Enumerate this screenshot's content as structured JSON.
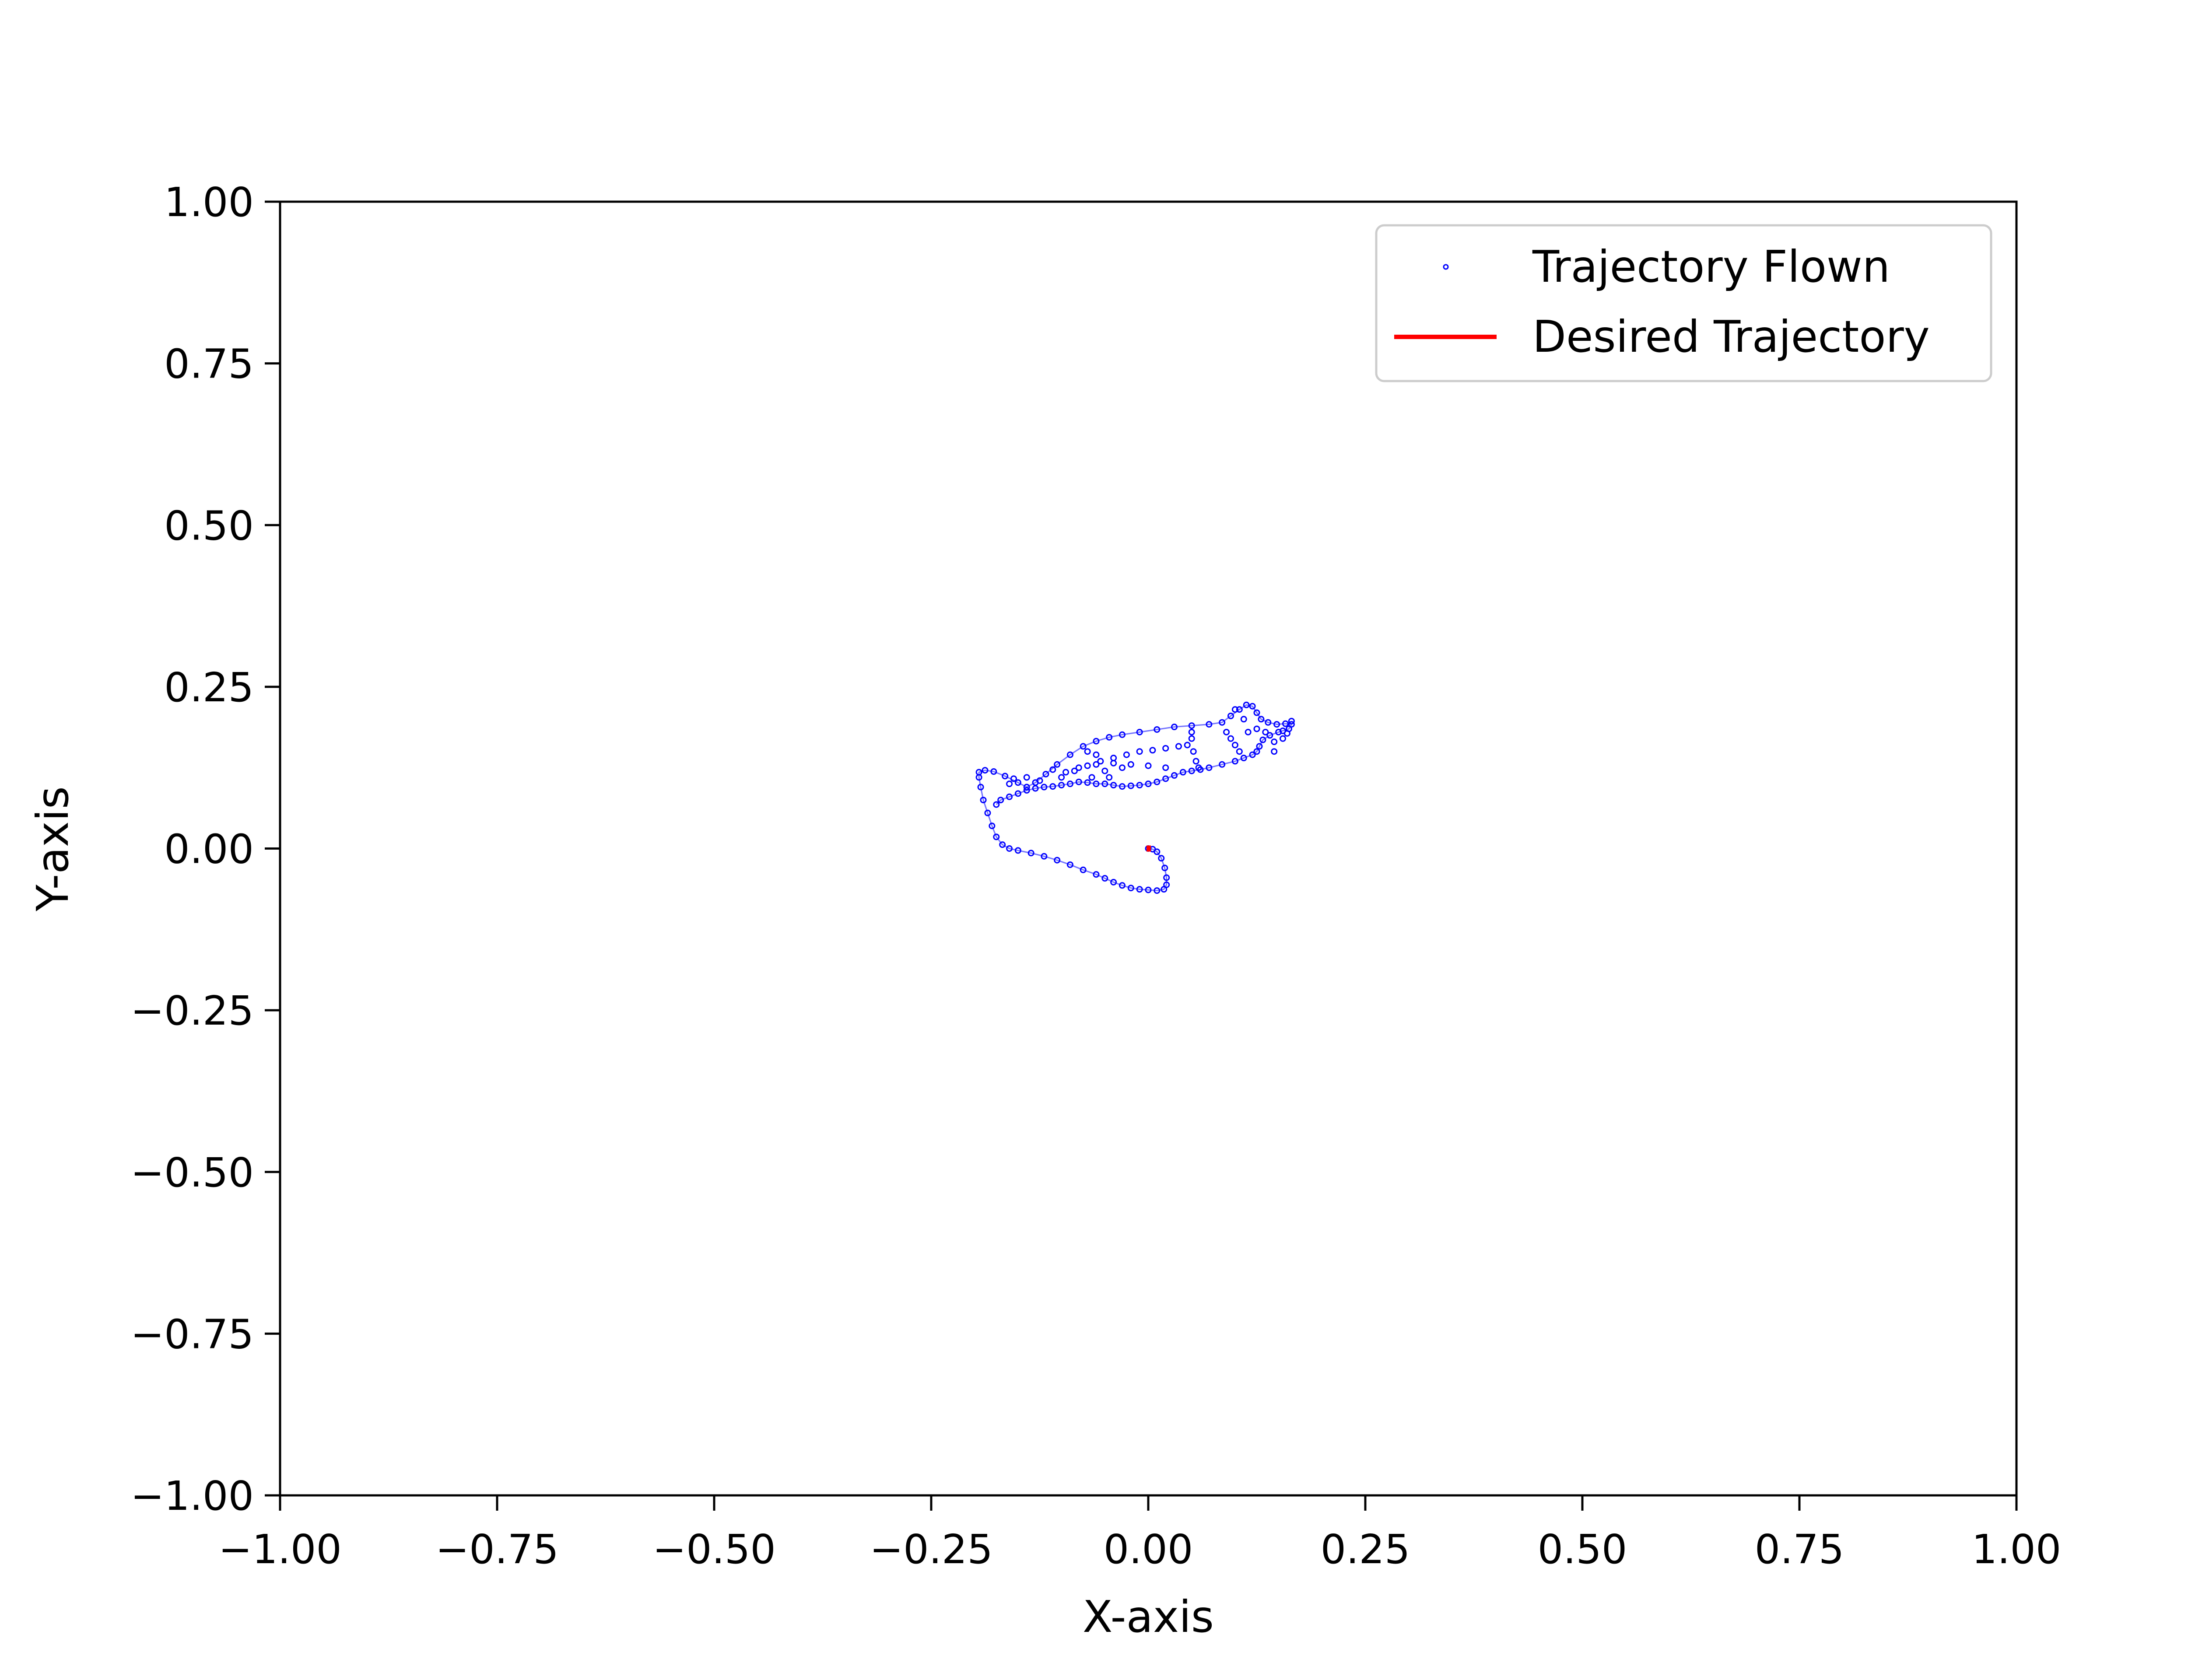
{
  "chart_data": {
    "type": "scatter",
    "title": "",
    "xlabel": "X-axis",
    "ylabel": "Y-axis",
    "xlim": [
      -1.0,
      1.0
    ],
    "ylim": [
      -1.0,
      1.0
    ],
    "x_ticks": [
      -1.0,
      -0.75,
      -0.5,
      -0.25,
      0.0,
      0.25,
      0.5,
      0.75,
      1.0
    ],
    "y_ticks": [
      -1.0,
      -0.75,
      -0.5,
      -0.25,
      0.0,
      0.25,
      0.5,
      0.75,
      1.0
    ],
    "x_tick_labels": [
      "−1.00",
      "−0.75",
      "−0.50",
      "−0.25",
      "0.00",
      "0.25",
      "0.50",
      "0.75",
      "1.00"
    ],
    "y_tick_labels": [
      "−1.00",
      "−0.75",
      "−0.50",
      "−0.25",
      "0.00",
      "0.25",
      "0.50",
      "0.75",
      "1.00"
    ],
    "grid": false,
    "legend": {
      "placement": "upper-right",
      "entries": [
        {
          "label": "Trajectory Flown",
          "marker": "point",
          "color": "#0000ff"
        },
        {
          "label": "Desired Trajectory",
          "marker": "line",
          "color": "#ff0000"
        }
      ]
    },
    "series": [
      {
        "name": "Trajectory Flown",
        "mode": "points",
        "color": "#0000ff",
        "points": [
          [
            0.0,
            0.0
          ],
          [
            0.005,
            -0.001
          ],
          [
            0.01,
            -0.005
          ],
          [
            0.015,
            -0.015
          ],
          [
            0.019,
            -0.03
          ],
          [
            0.021,
            -0.045
          ],
          [
            0.021,
            -0.056
          ],
          [
            0.018,
            -0.063
          ],
          [
            0.01,
            -0.065
          ],
          [
            0.0,
            -0.064
          ],
          [
            -0.01,
            -0.063
          ],
          [
            -0.02,
            -0.061
          ],
          [
            -0.03,
            -0.057
          ],
          [
            -0.04,
            -0.052
          ],
          [
            -0.05,
            -0.046
          ],
          [
            -0.06,
            -0.04
          ],
          [
            -0.075,
            -0.033
          ],
          [
            -0.09,
            -0.025
          ],
          [
            -0.105,
            -0.018
          ],
          [
            -0.12,
            -0.012
          ],
          [
            -0.135,
            -0.007
          ],
          [
            -0.15,
            -0.003
          ],
          [
            -0.16,
            0.0
          ],
          [
            -0.168,
            0.006
          ],
          [
            -0.175,
            0.018
          ],
          [
            -0.18,
            0.035
          ],
          [
            -0.185,
            0.055
          ],
          [
            -0.19,
            0.075
          ],
          [
            -0.193,
            0.095
          ],
          [
            -0.195,
            0.11
          ],
          [
            -0.195,
            0.118
          ],
          [
            -0.188,
            0.121
          ],
          [
            -0.178,
            0.119
          ],
          [
            -0.165,
            0.112
          ],
          [
            -0.15,
            0.102
          ],
          [
            -0.14,
            0.095
          ],
          [
            -0.13,
            0.102
          ],
          [
            -0.118,
            0.115
          ],
          [
            -0.105,
            0.13
          ],
          [
            -0.09,
            0.145
          ],
          [
            -0.075,
            0.158
          ],
          [
            -0.06,
            0.166
          ],
          [
            -0.045,
            0.172
          ],
          [
            -0.03,
            0.176
          ],
          [
            -0.01,
            0.18
          ],
          [
            0.01,
            0.184
          ],
          [
            0.03,
            0.188
          ],
          [
            0.05,
            0.19
          ],
          [
            0.07,
            0.192
          ],
          [
            0.085,
            0.195
          ],
          [
            0.095,
            0.205
          ],
          [
            0.105,
            0.215
          ],
          [
            0.113,
            0.222
          ],
          [
            0.12,
            0.22
          ],
          [
            0.125,
            0.21
          ],
          [
            0.13,
            0.2
          ],
          [
            0.138,
            0.195
          ],
          [
            0.148,
            0.192
          ],
          [
            0.158,
            0.193
          ],
          [
            0.165,
            0.192
          ],
          [
            0.162,
            0.185
          ],
          [
            0.15,
            0.18
          ],
          [
            0.14,
            0.175
          ],
          [
            0.132,
            0.168
          ],
          [
            0.128,
            0.158
          ],
          [
            0.125,
            0.15
          ],
          [
            0.12,
            0.145
          ],
          [
            0.11,
            0.14
          ],
          [
            0.1,
            0.135
          ],
          [
            0.085,
            0.13
          ],
          [
            0.07,
            0.125
          ],
          [
            0.06,
            0.122
          ],
          [
            0.05,
            0.12
          ],
          [
            0.04,
            0.118
          ],
          [
            0.03,
            0.113
          ],
          [
            0.02,
            0.108
          ],
          [
            0.01,
            0.103
          ],
          [
            0.0,
            0.1
          ],
          [
            -0.01,
            0.098
          ],
          [
            -0.02,
            0.097
          ],
          [
            -0.03,
            0.096
          ],
          [
            -0.04,
            0.098
          ],
          [
            -0.05,
            0.1
          ],
          [
            -0.06,
            0.1
          ],
          [
            -0.07,
            0.102
          ],
          [
            -0.08,
            0.103
          ],
          [
            -0.09,
            0.1
          ],
          [
            -0.1,
            0.098
          ],
          [
            -0.11,
            0.096
          ],
          [
            -0.12,
            0.095
          ],
          [
            -0.13,
            0.093
          ],
          [
            -0.14,
            0.09
          ],
          [
            -0.15,
            0.085
          ],
          [
            -0.16,
            0.08
          ],
          [
            -0.17,
            0.075
          ],
          [
            -0.175,
            0.068
          ],
          [
            -0.1,
            0.11
          ],
          [
            -0.085,
            0.12
          ],
          [
            -0.07,
            0.128
          ],
          [
            -0.055,
            0.135
          ],
          [
            -0.04,
            0.14
          ],
          [
            -0.025,
            0.145
          ],
          [
            -0.01,
            0.15
          ],
          [
            0.005,
            0.152
          ],
          [
            0.02,
            0.155
          ],
          [
            0.035,
            0.158
          ],
          [
            0.045,
            0.16
          ],
          [
            0.05,
            0.17
          ],
          [
            0.05,
            0.18
          ],
          [
            0.052,
            0.15
          ],
          [
            0.055,
            0.135
          ],
          [
            0.058,
            0.125
          ],
          [
            0.02,
            0.125
          ],
          [
            0.0,
            0.128
          ],
          [
            -0.02,
            0.13
          ],
          [
            -0.04,
            0.132
          ],
          [
            -0.06,
            0.13
          ],
          [
            -0.08,
            0.125
          ],
          [
            -0.095,
            0.118
          ],
          [
            -0.11,
            0.122
          ],
          [
            -0.07,
            0.15
          ],
          [
            -0.06,
            0.145
          ],
          [
            -0.05,
            0.12
          ],
          [
            -0.045,
            0.11
          ],
          [
            -0.03,
            0.125
          ],
          [
            -0.065,
            0.11
          ],
          [
            -0.125,
            0.105
          ],
          [
            -0.14,
            0.11
          ],
          [
            -0.155,
            0.108
          ],
          [
            -0.16,
            0.1
          ],
          [
            0.09,
            0.18
          ],
          [
            0.095,
            0.17
          ],
          [
            0.1,
            0.16
          ],
          [
            0.105,
            0.15
          ],
          [
            0.115,
            0.18
          ],
          [
            0.125,
            0.185
          ],
          [
            0.135,
            0.18
          ],
          [
            0.145,
            0.165
          ],
          [
            0.155,
            0.17
          ],
          [
            0.16,
            0.178
          ],
          [
            0.11,
            0.2
          ],
          [
            0.1,
            0.215
          ],
          [
            0.145,
            0.15
          ],
          [
            0.165,
            0.197
          ],
          [
            0.155,
            0.182
          ]
        ]
      },
      {
        "name": "Desired Trajectory",
        "mode": "line",
        "color": "#ff0000",
        "points": [
          [
            -0.002,
            0.0
          ],
          [
            0.003,
            0.0
          ]
        ]
      }
    ]
  }
}
